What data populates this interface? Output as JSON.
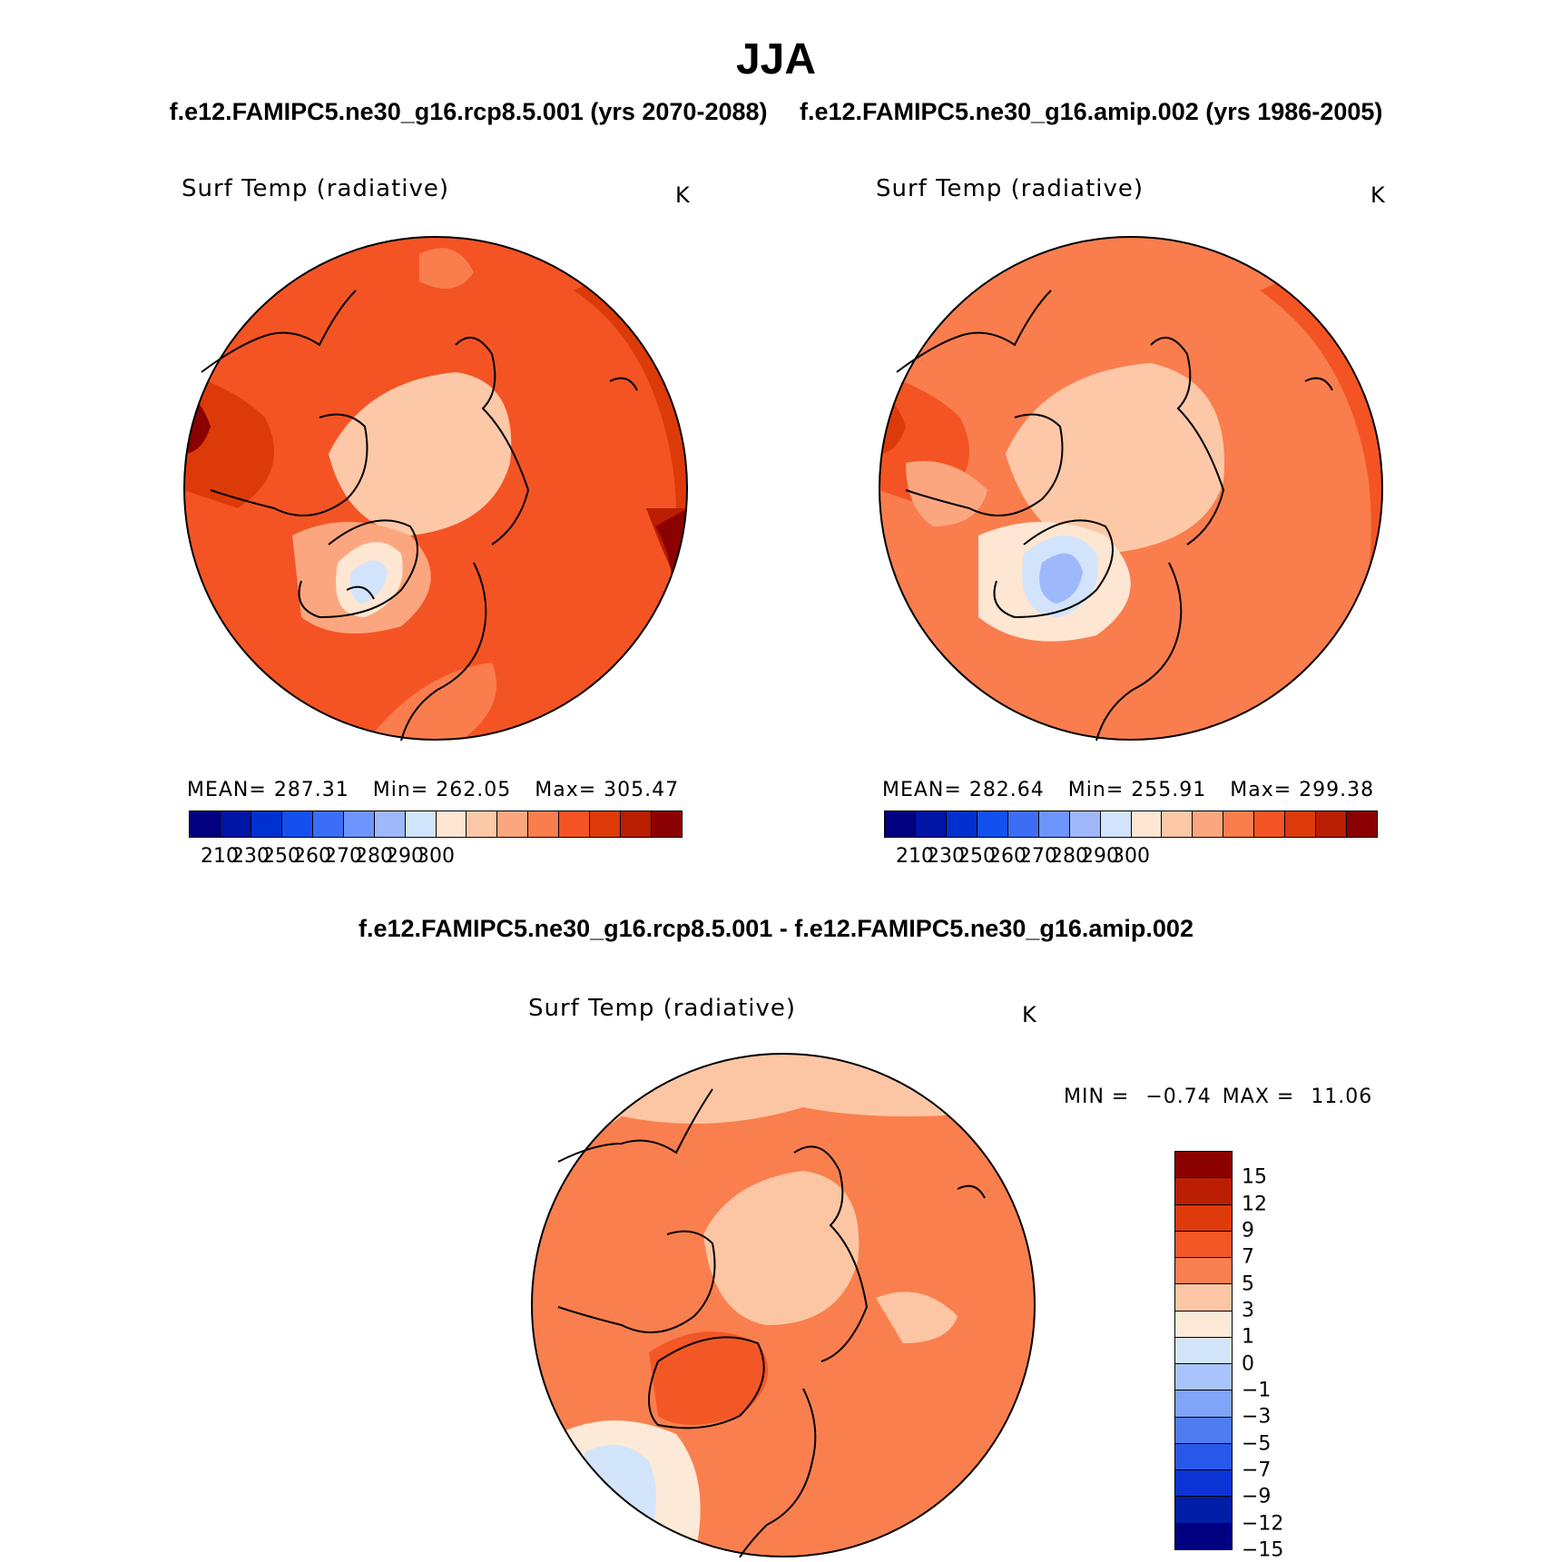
{
  "title": "JJA",
  "case_a": "f.e12.FAMIPC5.ne30_g16.rcp8.5.001 (yrs 2070-2088)",
  "case_b": "f.e12.FAMIPC5.ne30_g16.amip.002 (yrs 1986-2005)",
  "diff_title": "f.e12.FAMIPC5.ne30_g16.rcp8.5.001 - f.e12.FAMIPC5.ne30_g16.amip.002",
  "panels": {
    "left": {
      "variable": "Surf Temp (radiative)",
      "unit": "K",
      "mean_text": "MEAN= 287.31",
      "min_text": "Min= 262.05",
      "max_text": "Max= 305.47"
    },
    "right": {
      "variable": "Surf Temp (radiative)",
      "unit": "K",
      "mean_text": "MEAN= 282.64",
      "min_text": "Min= 255.91",
      "max_text": "Max= 299.38"
    },
    "diff": {
      "variable": "Surf Temp (radiative)",
      "unit": "K",
      "min_label": "MIN =",
      "min_value": "−0.74",
      "max_label": "MAX =",
      "max_value": "11.06"
    }
  },
  "abs_colorbar": {
    "colors": [
      "#000080",
      "#0014a6",
      "#0030d0",
      "#1450f0",
      "#3c6ef5",
      "#6d94fa",
      "#9fb8fc",
      "#d2e4fc",
      "#fde6d2",
      "#fdc8a8",
      "#fca680",
      "#fa7d4e",
      "#f45424",
      "#dd3a0a",
      "#b91e02",
      "#8b0000"
    ],
    "labels": [
      "210",
      "230",
      "250",
      "260",
      "270",
      "280",
      "290",
      "300"
    ]
  },
  "diff_colorbar": {
    "colors": [
      "#8b0000",
      "#bb1e02",
      "#de3a0c",
      "#f45726",
      "#fa7f4e",
      "#fcc6a4",
      "#fde9d8",
      "#d3e5fb",
      "#a9c4fa",
      "#7fa4f8",
      "#4f7cf0",
      "#2858ea",
      "#0b33d6",
      "#001ea8",
      "#000080"
    ],
    "labels": [
      "15",
      "12",
      "9",
      "7",
      "5",
      "3",
      "1",
      "0",
      "−1",
      "−3",
      "−5",
      "−7",
      "−9",
      "−12",
      "−15"
    ]
  }
}
